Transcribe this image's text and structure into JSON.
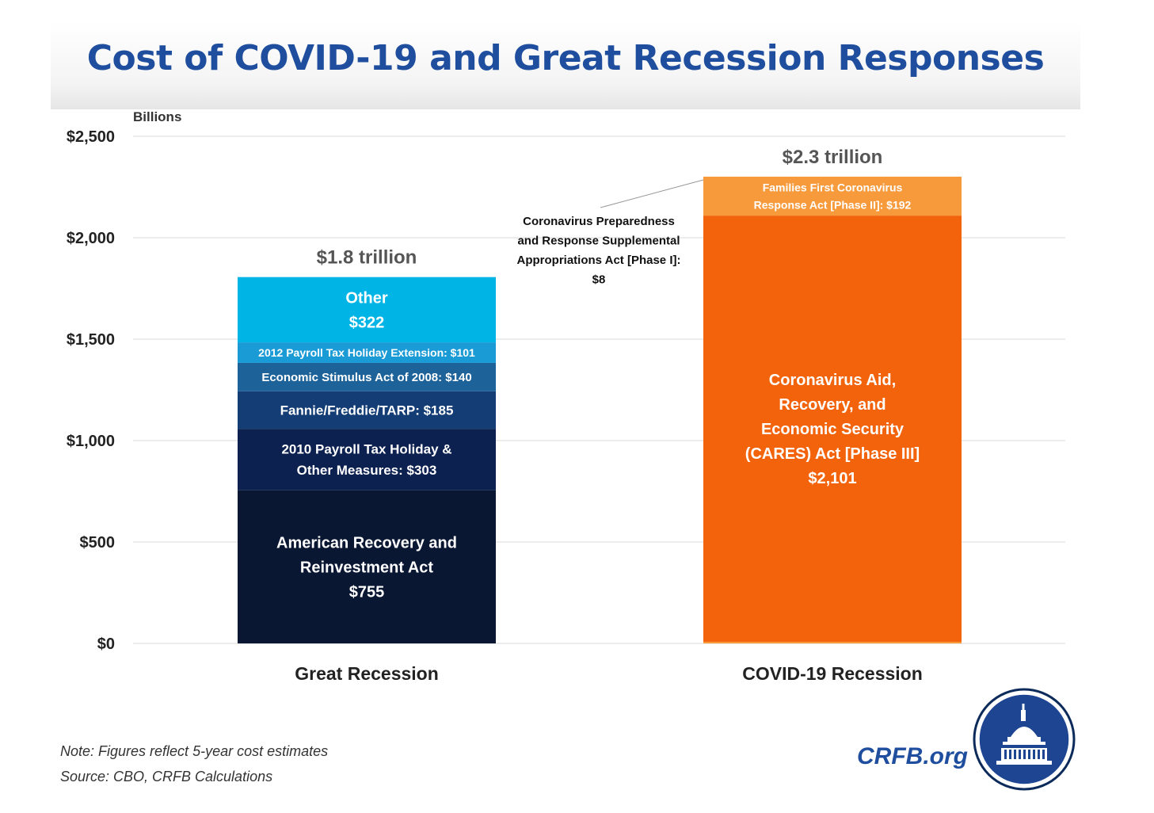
{
  "title": "Cost of COVID-19 and Great Recession Responses",
  "brand": "CRFB.org",
  "notes": {
    "note": "Note: Figures reflect 5-year cost estimates",
    "source": "Source: CBO, CRFB Calculations"
  },
  "colors": {
    "title": "#1f4e9e",
    "arra": "#0a1733",
    "payroll2010": "#0c2150",
    "fannie": "#133d74",
    "stimulus2008": "#1d6299",
    "payroll2012": "#1b9bd6",
    "other": "#00b5e6",
    "cares": "#f2630c",
    "families": "#f79a3b",
    "phase1": "#f79a3b",
    "grid": "#d9d9d9",
    "axisText": "#222222"
  },
  "chart_data": {
    "type": "bar",
    "stacked": true,
    "ylabel": "Billions",
    "ylim": [
      0,
      2500
    ],
    "yticks": [
      0,
      500,
      1000,
      1500,
      2000,
      2500
    ],
    "ytick_labels": [
      "$0",
      "$500",
      "$1,000",
      "$1,500",
      "$2,000",
      "$2,500"
    ],
    "categories": [
      "Great Recession",
      "COVID-19 Recession"
    ],
    "totals": [
      "$1.8 trillion",
      "$2.3 trillion"
    ],
    "stacks": [
      {
        "category": "Great Recession",
        "segments": [
          {
            "name": "American Recovery and Reinvestment Act",
            "value": 755,
            "color_key": "arra",
            "label_lines": [
              "American Recovery and",
              "Reinvestment Act",
              "$755"
            ],
            "font": 20
          },
          {
            "name": "2010 Payroll Tax Holiday & Other Measures",
            "value": 303,
            "color_key": "payroll2010",
            "label_lines": [
              "2010 Payroll Tax Holiday &",
              "Other Measures: $303"
            ],
            "font": 17
          },
          {
            "name": "Fannie/Freddie/TARP",
            "value": 185,
            "color_key": "fannie",
            "label_lines": [
              "Fannie/Freddie/TARP: $185"
            ],
            "font": 17
          },
          {
            "name": "Economic Stimulus Act of 2008",
            "value": 140,
            "color_key": "stimulus2008",
            "label_lines": [
              "Economic Stimulus Act of 2008: $140"
            ],
            "font": 15
          },
          {
            "name": "2012 Payroll Tax Holiday Extension",
            "value": 101,
            "color_key": "payroll2012",
            "label_lines": [
              "2012 Payroll Tax Holiday Extension: $101"
            ],
            "font": 14
          },
          {
            "name": "Other",
            "value": 322,
            "color_key": "other",
            "label_lines": [
              "Other",
              "$322"
            ],
            "font": 20
          }
        ]
      },
      {
        "category": "COVID-19 Recession",
        "segments": [
          {
            "name": "Coronavirus Preparedness and Response Supplemental Appropriations Act [Phase I]",
            "value": 8,
            "color_key": "phase1",
            "label_lines": [],
            "font": 15
          },
          {
            "name": "Coronavirus Aid, Recovery, and Economic Security (CARES) Act [Phase III]",
            "value": 2101,
            "color_key": "cares",
            "label_lines": [
              "Coronavirus Aid,",
              "Recovery, and",
              "Economic Security",
              "(CARES) Act [Phase III]",
              "$2,101"
            ],
            "font": 20
          },
          {
            "name": "Families First Coronavirus Response Act [Phase II]",
            "value": 192,
            "color_key": "families",
            "label_lines": [
              "Families First Coronavirus",
              "Response Act [Phase II]: $192"
            ],
            "font": 14
          }
        ]
      }
    ],
    "annotations": [
      {
        "text_lines": [
          "Coronavirus Preparedness",
          "and Response Supplemental",
          "Appropriations Act [Phase I]:",
          "$8"
        ],
        "points_to": "COVID-19 Recession"
      }
    ]
  }
}
